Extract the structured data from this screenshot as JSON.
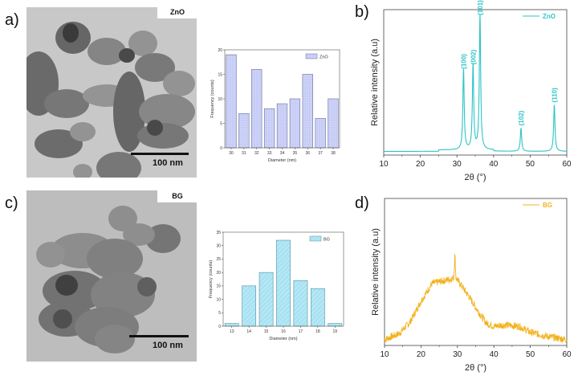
{
  "panels": {
    "a": {
      "label": "a)",
      "tag": "ZnO",
      "scale_bar": "100 nm"
    },
    "b": {
      "label": "b)"
    },
    "c": {
      "label": "c)",
      "tag": "BG",
      "scale_bar": "100 nm"
    },
    "d": {
      "label": "d)"
    }
  },
  "colors": {
    "zno_bar": "#c5cbf5",
    "zno_bar_edge": "#6b6f9a",
    "bg_bar": "#a8e2f2",
    "bg_bar_edge": "#4f8fa3",
    "zno_xrd": "#2cc4c4",
    "bg_xrd": "#f2b21c"
  },
  "chart_data": [
    {
      "id": "hist-zno",
      "type": "bar",
      "title": "",
      "legend": [
        "ZnO"
      ],
      "categories": [
        "30",
        "31",
        "32",
        "33",
        "34",
        "35",
        "36",
        "37",
        "38"
      ],
      "values": [
        19,
        7,
        16,
        8,
        9,
        10,
        15,
        6,
        10
      ],
      "xlabel": "Diameter (nm)",
      "ylabel": "Frequency (counts)",
      "ylim": [
        0,
        20
      ],
      "yticks": [
        "0",
        "5",
        "10",
        "15",
        "20"
      ],
      "legend_position": "top-right"
    },
    {
      "id": "xrd-zno",
      "type": "line",
      "legend": [
        "ZnO"
      ],
      "xlabel": "2θ (°)",
      "ylabel": "Relative intensity (a.u)",
      "xlim": [
        10,
        60
      ],
      "xticks": [
        "10",
        "20",
        "30",
        "40",
        "50",
        "60"
      ],
      "peaks": [
        {
          "x": 31.8,
          "y": 0.55,
          "label": "(100)"
        },
        {
          "x": 34.4,
          "y": 0.58,
          "label": "(002)"
        },
        {
          "x": 36.3,
          "y": 0.92,
          "label": "(101)"
        },
        {
          "x": 47.5,
          "y": 0.16,
          "label": "(102)"
        },
        {
          "x": 56.6,
          "y": 0.32,
          "label": "(110)"
        }
      ],
      "legend_position": "top-right"
    },
    {
      "id": "hist-bg",
      "type": "bar",
      "legend": [
        "BG"
      ],
      "categories": [
        "13",
        "14",
        "15",
        "16",
        "17",
        "18",
        "19"
      ],
      "values": [
        1,
        15,
        20,
        32,
        17,
        14,
        1
      ],
      "xlabel": "Diameter (nm)",
      "ylabel": "Frequency (counts)",
      "ylim": [
        0,
        35
      ],
      "yticks": [
        "0",
        "5",
        "10",
        "15",
        "20",
        "25",
        "30",
        "35"
      ],
      "legend_position": "top-right"
    },
    {
      "id": "xrd-bg",
      "type": "line",
      "legend": [
        "BG"
      ],
      "xlabel": "2θ (°)",
      "ylabel": "Relative intensity (a.u)",
      "xlim": [
        10,
        60
      ],
      "xticks": [
        "10",
        "20",
        "30",
        "40",
        "50",
        "60"
      ],
      "x": [
        10,
        14,
        17,
        20,
        23,
        26,
        28,
        29,
        29.3,
        29.6,
        31,
        33,
        36,
        38,
        40,
        43,
        47,
        50,
        55,
        60
      ],
      "values": [
        0.04,
        0.08,
        0.16,
        0.3,
        0.42,
        0.44,
        0.45,
        0.46,
        0.62,
        0.46,
        0.41,
        0.34,
        0.22,
        0.15,
        0.13,
        0.14,
        0.13,
        0.09,
        0.06,
        0.04
      ],
      "legend_position": "top-right"
    }
  ]
}
